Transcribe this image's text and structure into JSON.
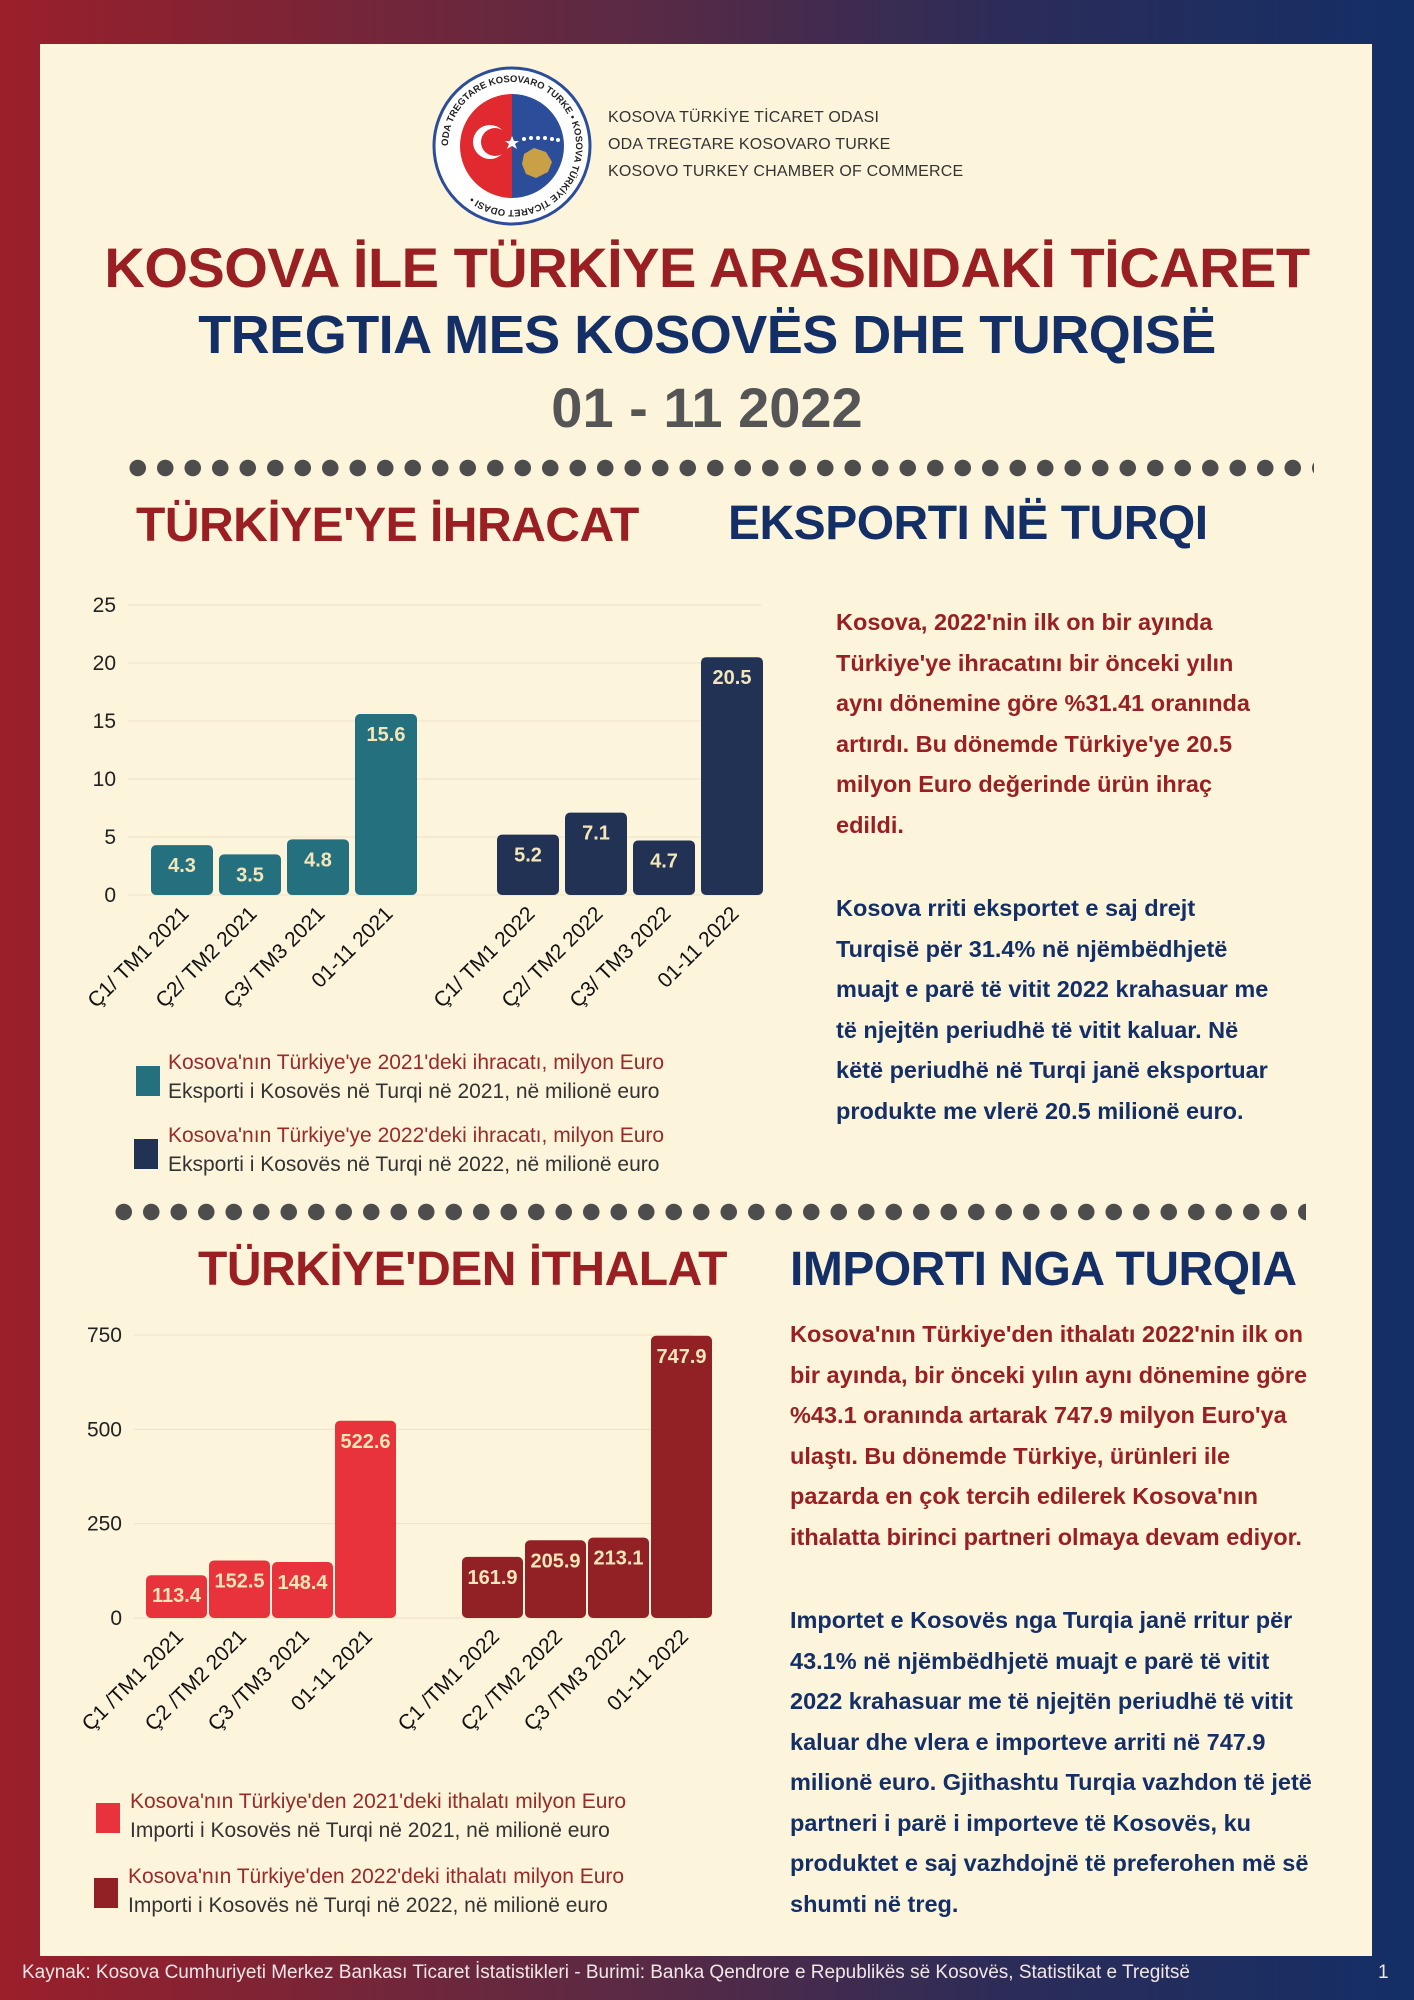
{
  "header": {
    "org_lines": [
      "KOSOVA TÜRKİYE TİCARET ODASI",
      "ODA TREGTARE KOSOVARO TURKE",
      "KOSOVO TURKEY CHAMBER OF COMMERCE"
    ],
    "title_tr": "KOSOVA İLE TÜRKİYE ARASINDAKİ TİCARET",
    "title_sq": "TREGTIA MES KOSOVËS DHE TURQISË",
    "period": "01 - 11 2022"
  },
  "logo": {
    "ring_text": "ODA TREGTARE KOSOVARO TURKE • KOSOVA TÜRKİYE TİCARET ODASI •",
    "colors": {
      "ring": "#2c4e9a",
      "left": "#e02a2f",
      "right": "#2c4e9a"
    }
  },
  "export": {
    "heading_tr": "TÜRKİYE'YE İHRACAT",
    "heading_sq": "EKSPORTI NË TURQI",
    "paragraph_tr": [
      "Kosova, 2022'nin ilk on bir ayında",
      "Türkiye'ye ihracatını bir önceki yılın",
      "aynı dönemine göre %31.41 oranında",
      "artırdı. Bu dönemde Türkiye'ye 20.5",
      "milyon Euro değerinde ürün ihraç",
      "edildi."
    ],
    "paragraph_sq": [
      "Kosova rriti eksportet e saj drejt",
      "Turqisë për 31.4% në njëmbëdhjetë",
      "muajt e parë të vitit 2022 krahasuar me",
      "të njejtën periudhë të vitit kaluar. Në",
      "këtë periudhë në Turqi janë eksportuar",
      "produkte me vlerë 20.5 milionë euro."
    ],
    "legend": [
      {
        "tr": "Kosova'nın Türkiye'ye 2021'deki ihracatı, milyon Euro",
        "sq": "Eksporti i Kosovës në Turqi në 2021, në milionë euro",
        "color": "#24707f"
      },
      {
        "tr": "Kosova'nın Türkiye'ye 2022'deki ihracatı, milyon Euro",
        "sq": "Eksporti i Kosovës në Turqi në 2022, në milionë euro",
        "color": "#223255"
      }
    ]
  },
  "import": {
    "heading_tr": "TÜRKİYE'DEN İTHALAT",
    "heading_sq": "IMPORTI NGA TURQIA",
    "paragraph_tr": [
      "Kosova'nın Türkiye'den ithalatı 2022'nin ilk on",
      "bir ayında, bir önceki yılın aynı dönemine göre",
      "%43.1 oranında artarak 747.9 milyon Euro'ya",
      "ulaştı.  Bu dönemde Türkiye, ürünleri ile",
      "pazarda en çok tercih edilerek Kosova'nın",
      "ithalatta birinci partneri olmaya devam ediyor."
    ],
    "paragraph_sq": [
      "Importet e Kosovës nga Turqia janë rritur për",
      "43.1% në njëmbëdhjetë muajt e parë të vitit",
      "2022 krahasuar me të njejtën periudhë të vitit",
      "kaluar dhe vlera e importeve arriti në 747.9",
      "milionë euro. Gjithashtu Turqia vazhdon të jetë",
      "partneri i parë i importeve të Kosovës, ku",
      "produktet e saj vazhdojnë të preferohen më së",
      "shumti në treg."
    ],
    "legend": [
      {
        "tr": "Kosova'nın Türkiye'den 2021'deki  ithalatı milyon Euro",
        "sq": "Importi i Kosovës në Turqi në 2021, në milionë euro",
        "color": "#e8333c"
      },
      {
        "tr": "Kosova'nın Türkiye'den 2022'deki ithalatı milyon Euro",
        "sq": "Importi i Kosovës në Turqi në 2022, në milionë euro",
        "color": "#922125"
      }
    ]
  },
  "chart_data": [
    {
      "type": "bar",
      "categories": [
        "Ç1/ TM1 2021",
        "Ç2/ TM2 2021",
        "Ç3/ TM3 2021",
        "01-11 2021",
        "Ç1/ TM1 2022",
        "Ç2/ TM2 2022",
        "Ç3/ TM3 2022",
        "01-11 2022"
      ],
      "values": [
        4.3,
        3.5,
        4.8,
        15.6,
        5.2,
        7.1,
        4.7,
        20.5
      ],
      "colors": [
        "#24707f",
        "#24707f",
        "#24707f",
        "#24707f",
        "#223255",
        "#223255",
        "#223255",
        "#223255"
      ],
      "yticks": [
        0,
        5,
        10,
        15,
        20,
        25
      ],
      "ylim": [
        0,
        25
      ],
      "grid": true
    },
    {
      "type": "bar",
      "categories": [
        "Ç1 /TM1 2021",
        "Ç2 /TM2 2021",
        "Ç3 /TM3 2021",
        "01-11 2021",
        "Ç1 /TM1 2022",
        "Ç2 /TM2 2022",
        "Ç3 /TM3 2022",
        "01-11 2022"
      ],
      "values": [
        113.4,
        152.5,
        148.4,
        522.6,
        161.9,
        205.9,
        213.1,
        747.9
      ],
      "colors": [
        "#e8333c",
        "#e8333c",
        "#e8333c",
        "#e8333c",
        "#922125",
        "#922125",
        "#922125",
        "#922125"
      ],
      "yticks": [
        0,
        250,
        500,
        750
      ],
      "ylim": [
        0,
        750
      ],
      "grid": true
    }
  ],
  "footer": {
    "source": "Kaynak: Kosova Cumhuriyeti Merkez Bankası Ticaret İstatistikleri -   Burimi: Banka Qendrore e Republikës së Kosovës, Statistikat e Tregitsë",
    "page": "1"
  }
}
